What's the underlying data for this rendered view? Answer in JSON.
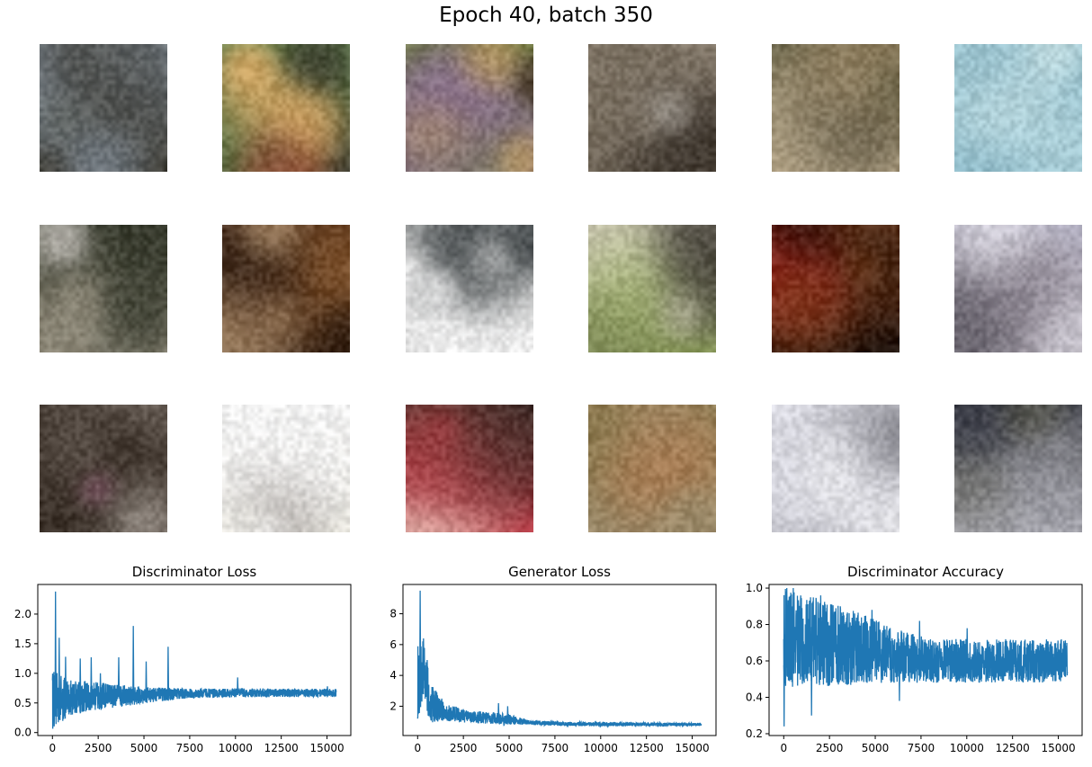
{
  "figure": {
    "title": "Epoch 40, batch 350"
  },
  "samples": [
    {
      "label": "generated-sample",
      "colors": [
        "#7d8791",
        "#5b5e55",
        "#c9c9c9",
        "#3c3a32"
      ]
    },
    {
      "label": "generated-sample",
      "colors": [
        "#5e7c4a",
        "#d65a3b",
        "#e7b16a",
        "#3a3b2e"
      ]
    },
    {
      "label": "generated-sample",
      "colors": [
        "#6a7a3a",
        "#3b2a1c",
        "#c4a060",
        "#8a6b9a"
      ]
    },
    {
      "label": "generated-sample",
      "colors": [
        "#8a7f70",
        "#2d2620",
        "#e0ddd6",
        "#6b6152"
      ]
    },
    {
      "label": "generated-sample",
      "colors": [
        "#5c5a40",
        "#8c7a5a",
        "#3e3a2c",
        "#b8a88a"
      ]
    },
    {
      "label": "generated-sample",
      "colors": [
        "#a9cfd8",
        "#c8e0e3",
        "#d7864e",
        "#8db8c6"
      ]
    },
    {
      "label": "generated-sample",
      "colors": [
        "#3a3d30",
        "#c8c4be",
        "#6b6a5c",
        "#8a8575"
      ]
    },
    {
      "label": "generated-sample",
      "colors": [
        "#4a2c1a",
        "#8a5a30",
        "#c9a780",
        "#2a1a10"
      ]
    },
    {
      "label": "generated-sample",
      "colors": [
        "#d8d8d8",
        "#9a9a98",
        "#2e3436",
        "#efefef"
      ]
    },
    {
      "label": "generated-sample",
      "colors": [
        "#cbc6b4",
        "#5a6a3a",
        "#3e3a33",
        "#a8c06a"
      ]
    },
    {
      "label": "generated-sample",
      "colors": [
        "#3a1a10",
        "#7a4220",
        "#c02020",
        "#1e120c"
      ]
    },
    {
      "label": "generated-sample",
      "colors": [
        "#b8b6c8",
        "#5a5860",
        "#e8e6ee",
        "#7c7480"
      ]
    },
    {
      "label": "generated-sample",
      "colors": [
        "#6a6058",
        "#c880a8",
        "#efe8e0",
        "#3a3028"
      ]
    },
    {
      "label": "generated-sample",
      "colors": [
        "#f2f2f2",
        "#b0aaa0",
        "#7a7068",
        "#e6e4dc"
      ]
    },
    {
      "label": "generated-sample",
      "colors": [
        "#1a1a1e",
        "#7a5040",
        "#e8d8c8",
        "#c03040"
      ]
    },
    {
      "label": "generated-sample",
      "colors": [
        "#7a7a50",
        "#b07a50",
        "#5a6a8a",
        "#9a8a6a"
      ]
    },
    {
      "label": "generated-sample",
      "colors": [
        "#e0e0e8",
        "#3a3a40",
        "#ffffff",
        "#9a9aa2"
      ]
    },
    {
      "label": "generated-sample",
      "colors": [
        "#3c3e48",
        "#7a7a80",
        "#5a5a50",
        "#a8a8b0"
      ]
    }
  ],
  "chart_data": [
    {
      "type": "line",
      "title": "Discriminator Loss",
      "color": "#1f77b4",
      "x_ticks": [
        "0",
        "2500",
        "5000",
        "7500",
        "10000",
        "12500",
        "15000"
      ],
      "y_ticks": [
        "0.0",
        "0.5",
        "1.0",
        "1.5",
        "2.0"
      ],
      "xlim": [
        -800,
        16300
      ],
      "ylim": [
        -0.05,
        2.5
      ],
      "x_max": 15500,
      "series": {
        "mean": [
          [
            0,
            0.55
          ],
          [
            1500,
            0.6
          ],
          [
            3000,
            0.62
          ],
          [
            5000,
            0.63
          ],
          [
            7500,
            0.66
          ],
          [
            10000,
            0.67
          ],
          [
            15500,
            0.67
          ]
        ],
        "noise": [
          [
            0,
            0.5
          ],
          [
            1000,
            0.3
          ],
          [
            3000,
            0.22
          ],
          [
            5000,
            0.14
          ],
          [
            7500,
            0.08
          ],
          [
            15500,
            0.07
          ]
        ],
        "spikes": [
          [
            150,
            2.38
          ],
          [
            350,
            1.6
          ],
          [
            700,
            1.28
          ],
          [
            1500,
            1.25
          ],
          [
            2100,
            1.27
          ],
          [
            2600,
            1.0
          ],
          [
            3600,
            1.27
          ],
          [
            4400,
            1.8
          ],
          [
            5100,
            1.2
          ],
          [
            6300,
            1.45
          ],
          [
            10100,
            0.93
          ],
          [
            15000,
            0.78
          ]
        ]
      }
    },
    {
      "type": "line",
      "title": "Generator Loss",
      "color": "#1f77b4",
      "x_ticks": [
        "0",
        "2500",
        "5000",
        "7500",
        "10000",
        "12500",
        "15000"
      ],
      "y_ticks": [
        "2",
        "4",
        "6",
        "8"
      ],
      "xlim": [
        -800,
        16300
      ],
      "ylim": [
        0.1,
        9.9
      ],
      "x_max": 15500,
      "series": {
        "mean": [
          [
            0,
            3.5
          ],
          [
            300,
            4.5
          ],
          [
            700,
            2.2
          ],
          [
            1500,
            1.6
          ],
          [
            3000,
            1.3
          ],
          [
            5000,
            1.15
          ],
          [
            6000,
            0.95
          ],
          [
            8000,
            0.85
          ],
          [
            15500,
            0.82
          ]
        ],
        "noise": [
          [
            0,
            2.5
          ],
          [
            500,
            1.6
          ],
          [
            1500,
            0.55
          ],
          [
            3000,
            0.4
          ],
          [
            5000,
            0.35
          ],
          [
            6000,
            0.15
          ],
          [
            15500,
            0.1
          ]
        ],
        "spikes": [
          [
            120,
            9.5
          ],
          [
            300,
            6.4
          ],
          [
            500,
            5.0
          ],
          [
            900,
            3.0
          ],
          [
            1300,
            2.5
          ],
          [
            4400,
            2.2
          ],
          [
            4900,
            2.0
          ]
        ]
      }
    },
    {
      "type": "line",
      "title": "Discriminator Accuracy",
      "color": "#1f77b4",
      "x_ticks": [
        "0",
        "2500",
        "5000",
        "7500",
        "10000",
        "12500",
        "15000"
      ],
      "y_ticks": [
        "0.2",
        "0.4",
        "0.6",
        "0.8",
        "1.0"
      ],
      "xlim": [
        -800,
        16300
      ],
      "ylim": [
        0.19,
        1.02
      ],
      "x_max": 15500,
      "series": {
        "mean": [
          [
            0,
            0.72
          ],
          [
            2000,
            0.7
          ],
          [
            4000,
            0.67
          ],
          [
            6000,
            0.63
          ],
          [
            8000,
            0.6
          ],
          [
            15500,
            0.6
          ]
        ],
        "noise": [
          [
            0,
            0.28
          ],
          [
            2000,
            0.24
          ],
          [
            4000,
            0.2
          ],
          [
            6000,
            0.15
          ],
          [
            8000,
            0.12
          ],
          [
            15500,
            0.12
          ]
        ],
        "spikes": [
          [
            0,
            0.24
          ],
          [
            150,
            1.0
          ],
          [
            500,
            1.0
          ],
          [
            1500,
            0.3
          ],
          [
            2000,
            0.96
          ],
          [
            2600,
            0.9
          ],
          [
            4800,
            0.88
          ],
          [
            6300,
            0.38
          ],
          [
            7400,
            0.82
          ],
          [
            10000,
            0.78
          ]
        ]
      }
    }
  ]
}
